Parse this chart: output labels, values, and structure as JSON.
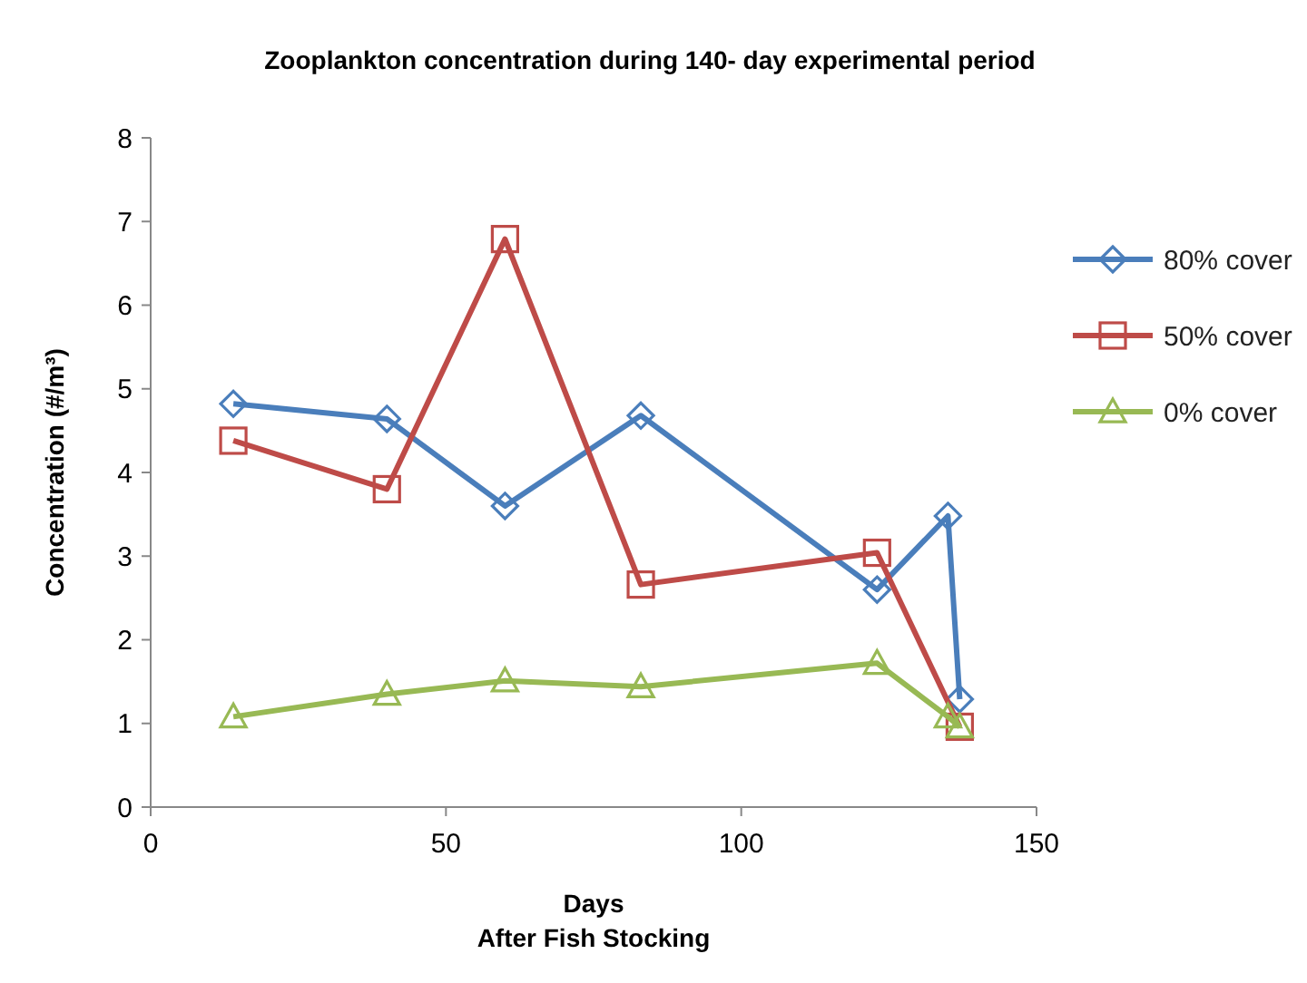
{
  "chart_data": {
    "type": "line",
    "title": "Zooplankton concentration during 140- day experimental period",
    "xlabel": "Days\nAfter Fish Stocking",
    "ylabel": "Concentration (#/m³)",
    "xlim": [
      0,
      150
    ],
    "xticks": [
      0,
      50,
      100,
      150
    ],
    "ylim": [
      0,
      8
    ],
    "yticks": [
      0,
      1,
      2,
      3,
      4,
      5,
      6,
      7,
      8
    ],
    "grid": false,
    "legend": "right",
    "series": [
      {
        "name": "80% cover",
        "color": "#4a7ebb",
        "marker": "diamond",
        "x": [
          14,
          40,
          60,
          83,
          123,
          135,
          137
        ],
        "values": [
          4.82,
          4.64,
          3.6,
          4.68,
          2.6,
          3.48,
          1.29
        ]
      },
      {
        "name": "50% cover",
        "color": "#be4b48",
        "marker": "square",
        "x": [
          14,
          40,
          60,
          83,
          123,
          137
        ],
        "values": [
          4.38,
          3.8,
          6.79,
          2.66,
          3.04,
          0.96
        ]
      },
      {
        "name": "0% cover",
        "color": "#98b954",
        "marker": "triangle",
        "x": [
          14,
          40,
          60,
          83,
          123,
          135,
          137
        ],
        "values": [
          1.08,
          1.35,
          1.51,
          1.44,
          1.72,
          1.08,
          0.96
        ]
      }
    ]
  }
}
